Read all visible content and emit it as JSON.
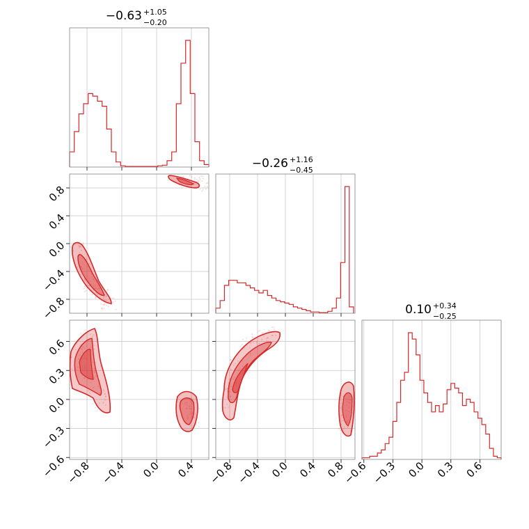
{
  "chart_data": {
    "type": "corner",
    "color": "#d62728",
    "grid": true,
    "titles": [
      {
        "median": "−0.63",
        "upper": "+1.05",
        "lower": "−0.20"
      },
      {
        "median": "−0.26",
        "upper": "+1.16",
        "lower": "−0.45"
      },
      {
        "median": "0.10",
        "upper": "+0.34",
        "lower": "−0.25"
      }
    ],
    "params": [
      {
        "range": [
          -1.0,
          0.6
        ],
        "grid": [
          -0.8,
          -0.4,
          0.0,
          0.4
        ],
        "ticks": [
          "−0.8",
          "−0.4",
          "0.0",
          "0.4"
        ]
      },
      {
        "range": [
          -1.0,
          1.0
        ],
        "grid": [
          -0.8,
          -0.4,
          0.0,
          0.4,
          0.8
        ],
        "ticks": [
          "−0.8",
          "−0.4",
          "0.0",
          "0.4",
          "0.8"
        ]
      },
      {
        "range": [
          -0.62,
          0.82
        ],
        "grid": [
          -0.6,
          -0.3,
          0.0,
          0.3,
          0.6
        ],
        "ticks": [
          "−0.6",
          "−0.3",
          "0.0",
          "0.3",
          "0.6"
        ]
      }
    ],
    "hist": [
      {
        "bin_lo": -1.0,
        "bin_hi": 0.6,
        "values": [
          0.12,
          0.28,
          0.42,
          0.5,
          0.58,
          0.56,
          0.52,
          0.48,
          0.3,
          0.12,
          0.04,
          0.01,
          0.005,
          0.005,
          0.005,
          0.005,
          0.005,
          0.005,
          0.005,
          0.01,
          0.015,
          0.05,
          0.12,
          0.5,
          0.82,
          1.0,
          0.58,
          0.2,
          0.05,
          0.02
        ]
      },
      {
        "bin_lo": -1.0,
        "bin_hi": 0.98,
        "values": [
          0.04,
          0.1,
          0.22,
          0.26,
          0.26,
          0.24,
          0.24,
          0.22,
          0.2,
          0.18,
          0.16,
          0.18,
          0.14,
          0.12,
          0.1,
          0.09,
          0.08,
          0.07,
          0.05,
          0.04,
          0.03,
          0.02,
          0.01,
          0.01,
          0.005,
          0.005,
          0.015,
          0.04,
          0.12,
          0.4,
          1.0,
          0.05
        ]
      },
      {
        "bin_lo": -0.62,
        "bin_hi": 0.82,
        "values": [
          0.01,
          0.01,
          0.02,
          0.02,
          0.04,
          0.06,
          0.1,
          0.14,
          0.24,
          0.36,
          0.5,
          0.55,
          0.8,
          0.76,
          0.66,
          0.5,
          0.42,
          0.36,
          0.3,
          0.34,
          0.3,
          0.35,
          0.44,
          0.48,
          0.45,
          0.42,
          0.34,
          0.38,
          0.36,
          0.3,
          0.26,
          0.22,
          0.16,
          0.07,
          0.02,
          0.01
        ]
      }
    ],
    "pairs": [
      {
        "x": 0,
        "y": 1,
        "points": [
          [
            -0.92,
            -0.05
          ],
          [
            -0.85,
            -0.3
          ],
          [
            -0.8,
            -0.5
          ],
          [
            -0.75,
            -0.6
          ],
          [
            -0.7,
            -0.68
          ],
          [
            -0.65,
            -0.75
          ],
          [
            -0.6,
            -0.82
          ],
          [
            -0.55,
            -0.86
          ],
          [
            0.35,
            0.93
          ],
          [
            0.45,
            0.88
          ],
          [
            0.55,
            0.83
          ]
        ]
      },
      {
        "x": 0,
        "y": 2,
        "points": [
          [
            -0.95,
            0.4
          ],
          [
            -0.88,
            0.5
          ],
          [
            -0.8,
            0.6
          ],
          [
            -0.75,
            0.3
          ],
          [
            -0.7,
            0.15
          ],
          [
            -0.65,
            0.0
          ],
          [
            0.38,
            -0.05
          ],
          [
            0.42,
            -0.12
          ],
          [
            0.4,
            -0.2
          ]
        ]
      },
      {
        "x": 1,
        "y": 2,
        "points": [
          [
            -0.85,
            0.0
          ],
          [
            -0.8,
            0.15
          ],
          [
            -0.7,
            0.35
          ],
          [
            -0.55,
            0.55
          ],
          [
            -0.4,
            0.65
          ],
          [
            -0.2,
            0.68
          ],
          [
            0.88,
            -0.05
          ],
          [
            0.9,
            -0.15
          ],
          [
            0.86,
            -0.25
          ]
        ]
      }
    ]
  }
}
